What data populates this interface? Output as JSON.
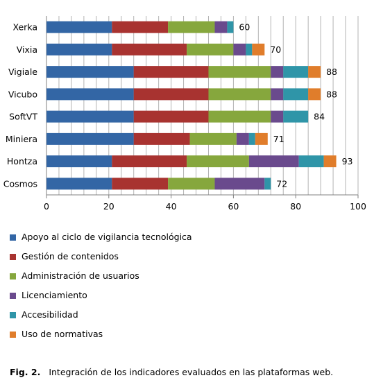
{
  "colors": {
    "apoyo": "#3366a5",
    "gestion": "#a83330",
    "administracion": "#86a73d",
    "licenciamiento": "#6a4a8d",
    "accesibilidad": "#2f95a8",
    "normativas": "#e07d2b",
    "grid": "#b3b3b3",
    "axis": "#7f7f7f"
  },
  "chart_data": {
    "type": "bar",
    "orientation": "horizontal",
    "stacked": true,
    "title": "",
    "xlabel": "",
    "ylabel": "",
    "categories": [
      "Xerka",
      "Vixia",
      "Vigiale",
      "Vicubo",
      "SoftVT",
      "Miniera",
      "Hontza",
      "Cosmos"
    ],
    "xlim": [
      0,
      100
    ],
    "x_ticks": [
      0,
      20,
      40,
      60,
      80,
      100
    ],
    "grid": true,
    "legend_position": "bottom",
    "series": [
      {
        "name": "Apoyo al ciclo de vigilancia tecnológica",
        "color_key": "apoyo",
        "values": [
          21,
          21,
          28,
          28,
          28,
          28,
          21,
          21
        ]
      },
      {
        "name": "Gestión de contenidos",
        "color_key": "gestion",
        "values": [
          18,
          24,
          24,
          24,
          24,
          18,
          24,
          18
        ]
      },
      {
        "name": "Administración de usuarios",
        "color_key": "administracion",
        "values": [
          15,
          15,
          20,
          20,
          20,
          15,
          20,
          15
        ]
      },
      {
        "name": "Licenciamiento",
        "color_key": "licenciamiento",
        "values": [
          4,
          4,
          4,
          4,
          4,
          4,
          16,
          16
        ]
      },
      {
        "name": "Accesibilidad",
        "color_key": "accesibilidad",
        "values": [
          2,
          2,
          8,
          8,
          8,
          2,
          8,
          2
        ]
      },
      {
        "name": "Uso de normativas",
        "color_key": "normativas",
        "values": [
          0,
          4,
          4,
          4,
          0,
          4,
          4,
          0
        ]
      }
    ],
    "totals": [
      60,
      70,
      88,
      88,
      84,
      71,
      93,
      72
    ]
  },
  "caption": {
    "label": "Fig. 2.",
    "text": "Integración de los indicadores evaluados en las plataformas web."
  }
}
